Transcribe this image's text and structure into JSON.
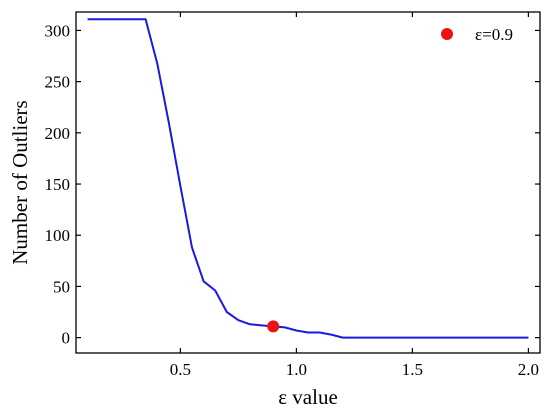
{
  "chart_data": {
    "type": "line",
    "xlabel": "ε value",
    "ylabel": "Number of Outliers",
    "xlim": [
      0.05,
      2.05
    ],
    "ylim": [
      -15,
      318
    ],
    "x_ticks": [
      {
        "value": 0.5,
        "label": "0.5"
      },
      {
        "value": 1.0,
        "label": "1.0"
      },
      {
        "value": 1.5,
        "label": "1.5"
      },
      {
        "value": 2.0,
        "label": "2.0"
      }
    ],
    "y_ticks": [
      {
        "value": 0,
        "label": "0"
      },
      {
        "value": 50,
        "label": "50"
      },
      {
        "value": 100,
        "label": "100"
      },
      {
        "value": 150,
        "label": "150"
      },
      {
        "value": 200,
        "label": "200"
      },
      {
        "value": 250,
        "label": "250"
      },
      {
        "value": 300,
        "label": "300"
      }
    ],
    "grid": false,
    "legend_position": "top-right",
    "series": [
      {
        "color": "#1a1adc",
        "points": [
          [
            0.1,
            311
          ],
          [
            0.15,
            311
          ],
          [
            0.2,
            311
          ],
          [
            0.25,
            311
          ],
          [
            0.3,
            311
          ],
          [
            0.35,
            311
          ],
          [
            0.4,
            268
          ],
          [
            0.45,
            210
          ],
          [
            0.5,
            148
          ],
          [
            0.55,
            88
          ],
          [
            0.6,
            55
          ],
          [
            0.65,
            46
          ],
          [
            0.7,
            25
          ],
          [
            0.75,
            17
          ],
          [
            0.8,
            13
          ],
          [
            0.85,
            12
          ],
          [
            0.9,
            11
          ],
          [
            0.95,
            10
          ],
          [
            1.0,
            7
          ],
          [
            1.05,
            5
          ],
          [
            1.1,
            5
          ],
          [
            1.15,
            3
          ],
          [
            1.2,
            0
          ],
          [
            1.3,
            0
          ],
          [
            1.5,
            0
          ],
          [
            1.75,
            0
          ],
          [
            2.0,
            0
          ]
        ]
      }
    ],
    "annotations": [
      {
        "label": "ε=0.9",
        "x": 0.9,
        "y": 11,
        "color": "#ee1111"
      }
    ]
  }
}
